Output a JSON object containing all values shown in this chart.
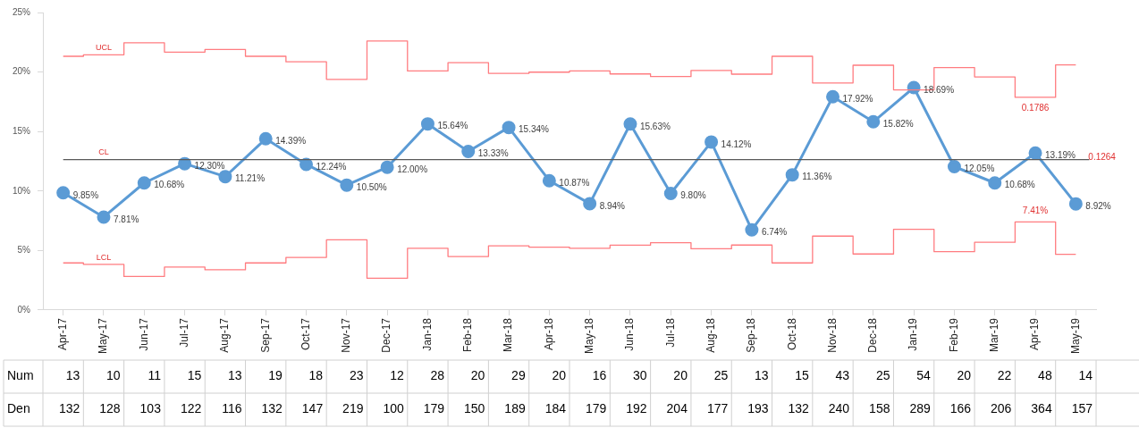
{
  "chart_data": {
    "type": "line",
    "categories": [
      "Apr-17",
      "May-17",
      "Jun-17",
      "Jul-17",
      "Aug-17",
      "Sep-17",
      "Oct-17",
      "Nov-17",
      "Dec-17",
      "Jan-18",
      "Feb-18",
      "Mar-18",
      "Apr-18",
      "May-18",
      "Jun-18",
      "Jul-18",
      "Aug-18",
      "Sep-18",
      "Oct-18",
      "Nov-18",
      "Dec-18",
      "Jan-19",
      "Feb-19",
      "Mar-19",
      "Apr-19",
      "May-19"
    ],
    "series": [
      {
        "type": "step",
        "name": "UCL",
        "color": "#ff7c80",
        "values": [
          21.32,
          21.45,
          22.46,
          21.67,
          21.9,
          21.32,
          20.86,
          19.38,
          22.61,
          20.09,
          20.78,
          19.89,
          19.99,
          20.09,
          19.84,
          19.62,
          20.13,
          19.82,
          21.32,
          19.08,
          20.57,
          18.5,
          20.38,
          19.59,
          17.87,
          20.6
        ]
      },
      {
        "type": "step",
        "name": "LCL",
        "color": "#ff7c80",
        "values": [
          3.96,
          3.83,
          2.82,
          3.61,
          3.38,
          3.96,
          4.42,
          5.9,
          2.67,
          5.19,
          4.5,
          5.39,
          5.29,
          5.19,
          5.45,
          5.66,
          5.15,
          5.46,
          3.96,
          6.21,
          4.71,
          6.78,
          4.9,
          5.69,
          7.41,
          4.68
        ]
      },
      {
        "type": "line",
        "color": "#5b9bd5",
        "marker": "circle",
        "values": [
          9.85,
          7.81,
          10.68,
          12.3,
          11.21,
          14.39,
          12.24,
          10.5,
          12.0,
          15.64,
          13.33,
          15.34,
          10.87,
          8.94,
          15.63,
          9.8,
          14.12,
          6.74,
          11.36,
          17.92,
          15.82,
          18.69,
          12.05,
          10.68,
          13.19,
          8.92
        ],
        "value_labels": [
          "9.85%",
          "7.81%",
          "10.68%",
          "12.30%",
          "11.21%",
          "14.39%",
          "12.24%",
          "10.50%",
          "12.00%",
          "15.64%",
          "13.33%",
          "15.34%",
          "10.87%",
          "8.94%",
          "15.63%",
          "9.80%",
          "14.12%",
          "6.74%",
          "11.36%",
          "17.92%",
          "15.82%",
          "18.69%",
          "12.05%",
          "10.68%",
          "13.19%",
          "8.92%"
        ]
      }
    ],
    "ylim": [
      0,
      25
    ],
    "yticks": [
      {
        "value": 0,
        "label": "0%"
      },
      {
        "value": 5,
        "label": "5%"
      },
      {
        "value": 10,
        "label": "10%"
      },
      {
        "value": 15,
        "label": "15%"
      },
      {
        "value": 20,
        "label": "20%"
      },
      {
        "value": 25,
        "label": "25%"
      }
    ],
    "ref_lines": [
      {
        "axis": "y",
        "value": 12.64,
        "label": "CL",
        "color": "#595959"
      }
    ],
    "annotations": [
      {
        "text": "0.1264",
        "x": "May-19",
        "y": 12.64
      },
      {
        "text": "0.1786",
        "x": "Apr-19",
        "y": 17.87
      },
      {
        "text": "7.41%",
        "x": "Apr-19",
        "y": 7.41
      },
      "Num",
      "13",
      "10",
      "11",
      "15",
      "13",
      "19",
      "18",
      "23",
      "12",
      "28",
      "20",
      "29",
      "20",
      "16",
      "30",
      "20",
      "25",
      "13",
      "15",
      "43",
      "25",
      "54",
      "20",
      "22",
      "48",
      "14",
      "Den",
      "132",
      "128",
      "103",
      "122",
      "116",
      "132",
      "147",
      "219",
      "100",
      "179",
      "150",
      "189",
      "184",
      "179",
      "192",
      "204",
      "177",
      "193",
      "132",
      "240",
      "158",
      "289",
      "166",
      "206",
      "364",
      "157"
    ],
    "grid": false,
    "legend": false
  }
}
